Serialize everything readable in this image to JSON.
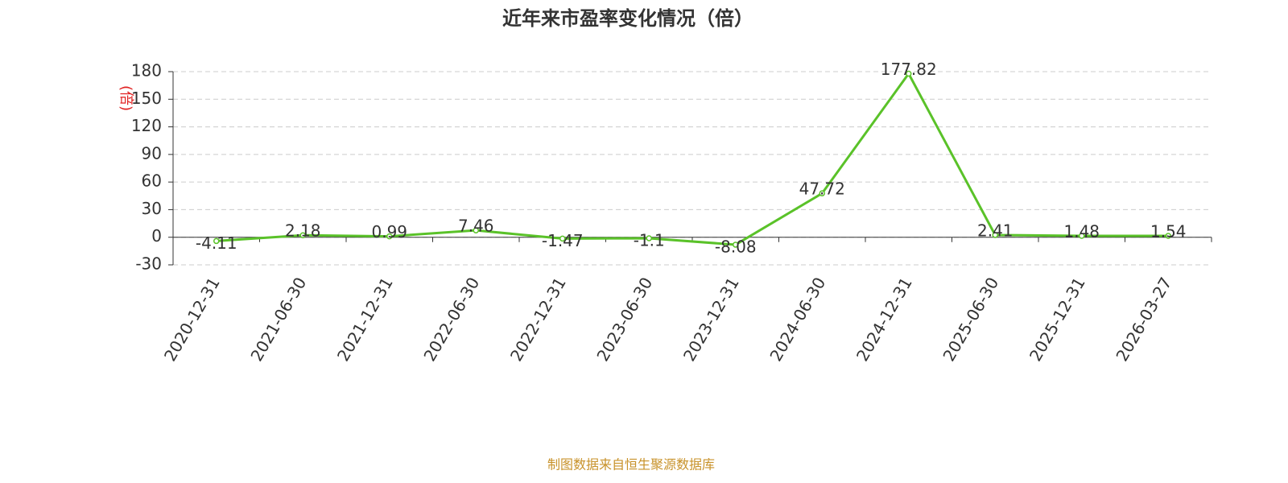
{
  "chart_data": {
    "type": "line",
    "title": "近年来市盈率变化情况（倍）",
    "y_label": "(倍)",
    "source": "制图数据来自恒生聚源数据库",
    "categories": [
      "2020-12-31",
      "2021-06-30",
      "2021-12-31",
      "2022-06-30",
      "2022-12-31",
      "2023-06-30",
      "2023-12-31",
      "2024-06-30",
      "2024-12-31",
      "2025-06-30",
      "2025-12-31",
      "2026-03-27"
    ],
    "values": [
      -4.11,
      2.18,
      0.99,
      7.46,
      -1.47,
      -1.1,
      -8.08,
      47.72,
      177.82,
      2.41,
      1.48,
      1.54
    ],
    "color": "#5ac229",
    "ylim": [
      -30,
      180
    ],
    "yticks": [
      -30,
      0,
      30,
      60,
      90,
      120,
      150,
      180
    ],
    "grid": true
  }
}
